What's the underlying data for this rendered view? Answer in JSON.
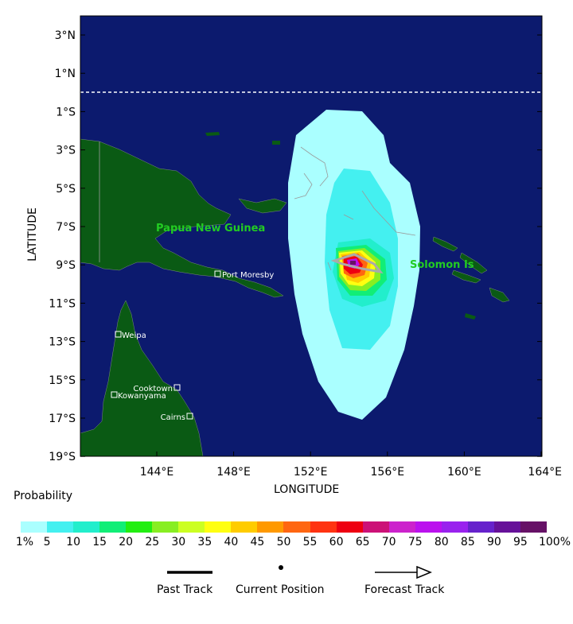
{
  "map": {
    "lat_ticks": [
      "3°N",
      "1°N",
      "1°S",
      "3°S",
      "5°S",
      "7°S",
      "9°S",
      "11°S",
      "13°S",
      "15°S",
      "17°S",
      "19°S"
    ],
    "lon_ticks": [
      "144°E",
      "148°E",
      "152°E",
      "156°E",
      "160°E",
      "164°E"
    ],
    "x_label": "LONGITUDE",
    "y_label": "LATITUDE",
    "colors": {
      "ocean": "#0c1a6e",
      "land": "#0a5a14",
      "equator_line": "#ffffff"
    },
    "region_labels": [
      {
        "text": "Papua New Guinea",
        "color": "#22cc22"
      },
      {
        "text": "Solomon Is",
        "color": "#22cc22"
      }
    ],
    "cities": [
      "Port Moresby",
      "Weipa",
      "Cooktown",
      "Kowanyama",
      "Cairns"
    ]
  },
  "legend": {
    "title": "Probability",
    "colors": [
      "#aaffff",
      "#44f0f0",
      "#22eecc",
      "#11ee77",
      "#22ee11",
      "#88ee22",
      "#ccff22",
      "#ffff11",
      "#ffcc00",
      "#ff9900",
      "#ff6611",
      "#ff3311",
      "#ee0011",
      "#cc1177",
      "#cc22cc",
      "#bb11ee",
      "#9922ee",
      "#6622cc",
      "#661199",
      "#661166"
    ],
    "labels": [
      "1%",
      "5",
      "10",
      "15",
      "20",
      "25",
      "30",
      "35",
      "40",
      "45",
      "50",
      "55",
      "60",
      "65",
      "70",
      "75",
      "80",
      "85",
      "90",
      "95",
      "100%"
    ],
    "items": [
      {
        "label": "Past Track",
        "icon": "past-track-line-icon"
      },
      {
        "label": "Current Position",
        "icon": "current-position-dot-icon"
      },
      {
        "label": "Forecast Track",
        "icon": "forecast-track-arrow-icon"
      }
    ]
  }
}
